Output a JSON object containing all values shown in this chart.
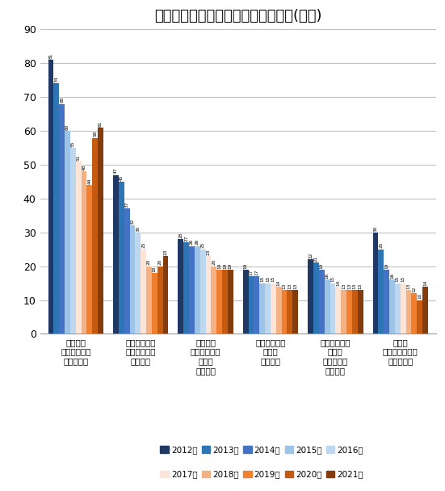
{
  "title": "仕事につけない理由別完全失業者数(万人)",
  "categories": [
    "希望する\n種類・内容の\n仕事が無い",
    "求人の年齢と\n自分の年齢が\n合わない",
    "勤務時間\n・休日などが\n希望と\n合わない",
    "賃金・給料が\n希望と\n合わない",
    "自分の技術や\n技能が\n求人要件に\n満たない",
    "条件に\nこだわらないが\n仕事が無い"
  ],
  "series": {
    "2012年": [
      81,
      47,
      28,
      19,
      22,
      30
    ],
    "2013年": [
      74,
      45,
      27,
      17,
      21,
      25
    ],
    "2014年": [
      68,
      37,
      26,
      17,
      19,
      19
    ],
    "2015年": [
      60,
      32,
      26,
      15,
      16,
      16
    ],
    "2016年": [
      55,
      30,
      25,
      15,
      15,
      15
    ],
    "2017年": [
      51,
      25,
      23,
      15,
      14,
      15
    ],
    "2018年": [
      48,
      20,
      20,
      14,
      13,
      13
    ],
    "2019年": [
      44,
      18,
      19,
      13,
      13,
      12
    ],
    "2020年": [
      58,
      20,
      19,
      13,
      13,
      10
    ],
    "2021年": [
      61,
      23,
      19,
      13,
      13,
      14
    ]
  },
  "colors": {
    "2012年": "#1f3864",
    "2013年": "#2e75b6",
    "2014年": "#4472c4",
    "2015年": "#9dc3e6",
    "2016年": "#bdd7ee",
    "2017年": "#fce4d6",
    "2018年": "#f4b183",
    "2019年": "#f08030",
    "2020年": "#c55a11",
    "2021年": "#843c0c"
  },
  "ylim": [
    0,
    90
  ],
  "yticks": [
    0,
    10,
    20,
    30,
    40,
    50,
    60,
    70,
    80,
    90
  ],
  "background_color": "#ffffff",
  "grid_color": "#c0c0c0",
  "title_fontsize": 13
}
